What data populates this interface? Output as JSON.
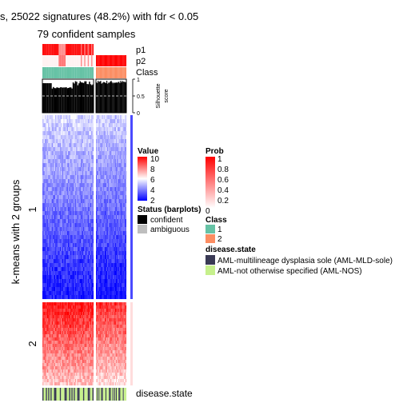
{
  "chart_data": {
    "type": "heatmap",
    "title": "s, 25022 signatures (48.2%) with fdr < 0.05",
    "subtitle": "79 confident samples",
    "row_split_label": "k-means with 2 groups",
    "row_groups": [
      "1",
      "2"
    ],
    "column_groups": [
      "1",
      "2"
    ],
    "column_group_sizes": [
      44,
      35
    ],
    "annotation_labels": {
      "p1": "p1",
      "p2": "p2",
      "class": "Class",
      "disease_state": "disease.state"
    },
    "silhouette": {
      "axis_title_1": "Silhouette",
      "axis_title_2": "score",
      "ticks": [
        "0",
        "0.5",
        "1"
      ],
      "cutoff": 0.5
    },
    "legends": {
      "value": {
        "title": "Value",
        "ticks": [
          "10",
          "8",
          "6",
          "4",
          "2"
        ],
        "range": [
          2,
          10
        ],
        "colors": [
          "#0000ff",
          "#ffffff",
          "#ff0000"
        ]
      },
      "status": {
        "title": "Status (barplots)",
        "items": [
          {
            "label": "confident",
            "color": "#000000"
          },
          {
            "label": "ambiguous",
            "color": "#bebebe"
          }
        ]
      },
      "prob": {
        "title": "Prob",
        "ticks": [
          "1",
          "0.8",
          "0.6",
          "0.4",
          "0.2",
          "0"
        ],
        "range": [
          0,
          1
        ],
        "colors": [
          "#ffffff",
          "#ff0000"
        ]
      },
      "class": {
        "title": "Class",
        "items": [
          {
            "label": "1",
            "color": "#66c2a5"
          },
          {
            "label": "2",
            "color": "#fc8d62"
          }
        ]
      },
      "disease_state": {
        "title": "disease.state",
        "items": [
          {
            "label": "AML-multilineage dysplasia sole (AML-MLD-sole)",
            "color": "#3a3a55"
          },
          {
            "label": "AML-not otherwise specified (AML-NOS)",
            "color": "#c6f08c"
          }
        ]
      }
    }
  }
}
